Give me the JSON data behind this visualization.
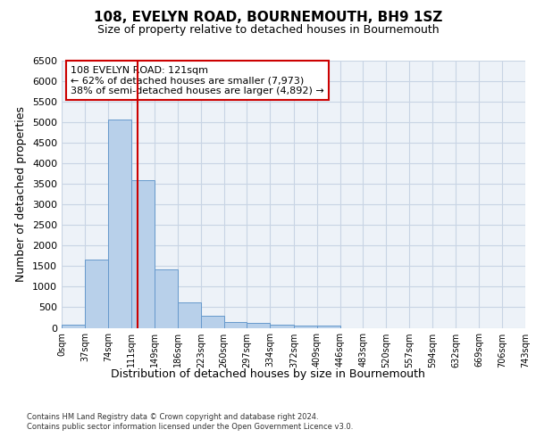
{
  "title": "108, EVELYN ROAD, BOURNEMOUTH, BH9 1SZ",
  "subtitle": "Size of property relative to detached houses in Bournemouth",
  "xlabel": "Distribution of detached houses by size in Bournemouth",
  "ylabel": "Number of detached properties",
  "footnote1": "Contains HM Land Registry data © Crown copyright and database right 2024.",
  "footnote2": "Contains public sector information licensed under the Open Government Licence v3.0.",
  "bar_edges": [
    0,
    37,
    74,
    111,
    149,
    186,
    223,
    260,
    297,
    334,
    372,
    409,
    446,
    483,
    520,
    557,
    594,
    632,
    669,
    706,
    743
  ],
  "bar_heights": [
    75,
    1650,
    5060,
    3580,
    1410,
    620,
    290,
    145,
    110,
    80,
    50,
    65,
    0,
    0,
    0,
    0,
    0,
    0,
    0,
    0
  ],
  "bar_color": "#b8d0ea",
  "bar_edgecolor": "#6699cc",
  "property_size": 121,
  "vline_color": "#cc0000",
  "annotation_text": "108 EVELYN ROAD: 121sqm\n← 62% of detached houses are smaller (7,973)\n38% of semi-detached houses are larger (4,892) →",
  "annotation_box_edgecolor": "#cc0000",
  "ylim_max": 6500,
  "yticks": [
    0,
    500,
    1000,
    1500,
    2000,
    2500,
    3000,
    3500,
    4000,
    4500,
    5000,
    5500,
    6000,
    6500
  ],
  "grid_color": "#c8d4e4",
  "bg_color": "#edf2f8",
  "title_fontsize": 11,
  "subtitle_fontsize": 9,
  "ylabel_fontsize": 9,
  "xlabel_fontsize": 9,
  "annot_fontsize": 8,
  "tick_fontsize": 7,
  "footnote_fontsize": 6,
  "tick_labels": [
    "0sqm",
    "37sqm",
    "74sqm",
    "111sqm",
    "149sqm",
    "186sqm",
    "223sqm",
    "260sqm",
    "297sqm",
    "334sqm",
    "372sqm",
    "409sqm",
    "446sqm",
    "483sqm",
    "520sqm",
    "557sqm",
    "594sqm",
    "632sqm",
    "669sqm",
    "706sqm",
    "743sqm"
  ]
}
